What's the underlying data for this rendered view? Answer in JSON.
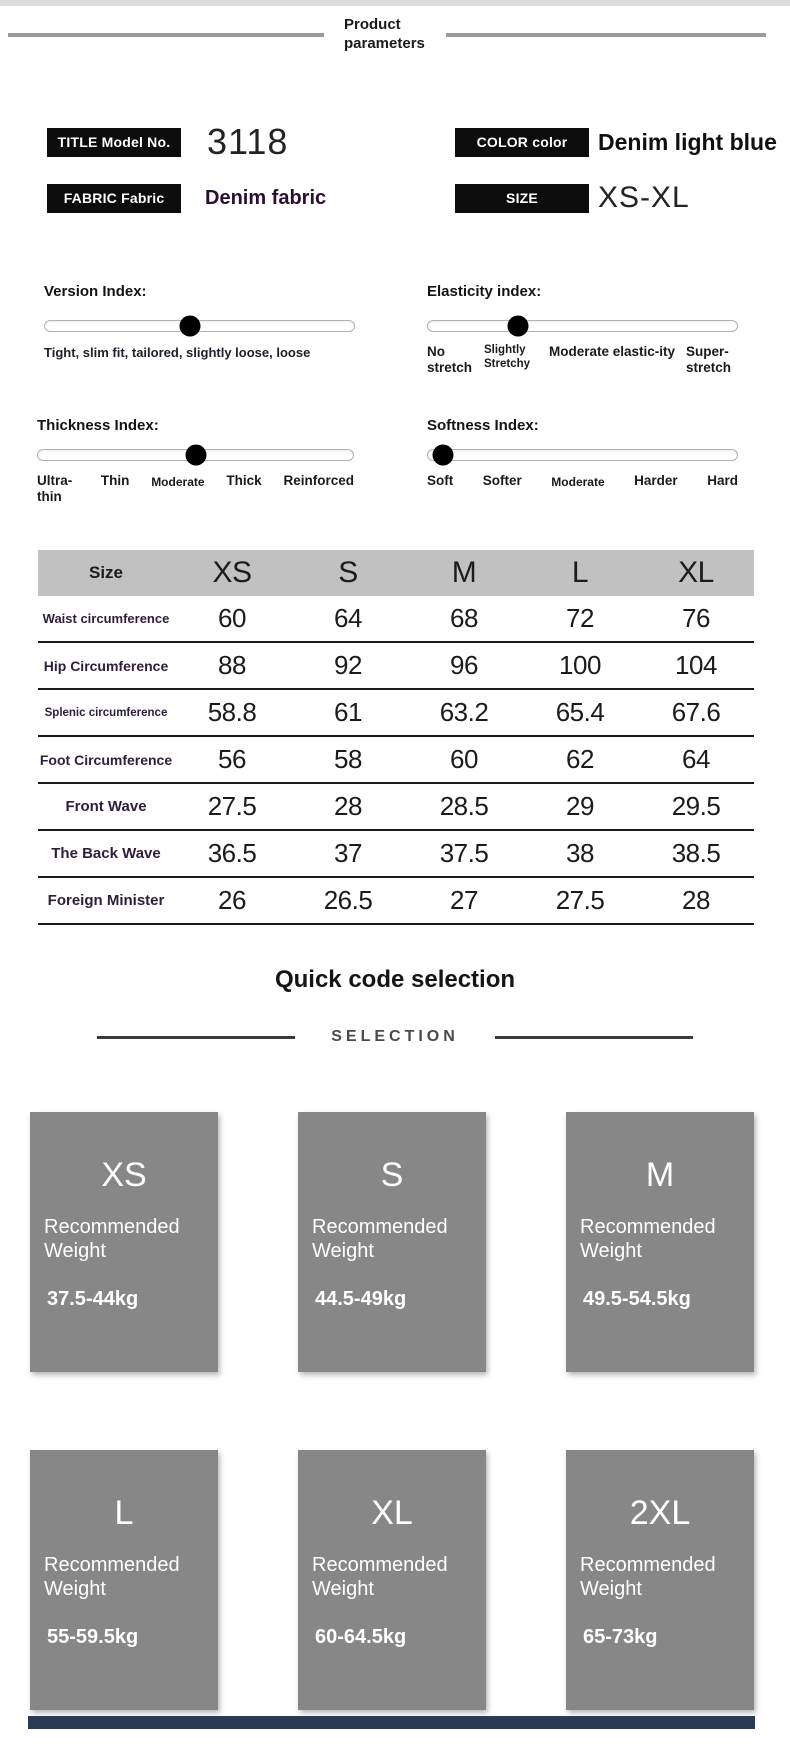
{
  "header": {
    "title": "Product parameters"
  },
  "badges": {
    "model": {
      "label": "TITLE Model No.",
      "value": "3118"
    },
    "color": {
      "label": "COLOR color",
      "value": "Denim light blue"
    },
    "fabric": {
      "label": "FABRIC Fabric",
      "value": "Denim fabric"
    },
    "size": {
      "label": "SIZE",
      "value": "XS-XL"
    }
  },
  "sliders": {
    "version": {
      "label": "Version Index:",
      "percent": 47,
      "caption": "Tight, slim fit, tailored, slightly loose, loose"
    },
    "elasticity": {
      "label": "Elasticity index:",
      "percent": 29,
      "ticks": [
        "No stretch",
        "Slightly Stretchy",
        "Moderate elastic-ity",
        "Super-stretch"
      ]
    },
    "thickness": {
      "label": "Thickness Index:",
      "percent": 50,
      "ticks": [
        "Ultra-thin",
        "Thin",
        "Moderate",
        "Thick",
        "Reinforced"
      ]
    },
    "softness": {
      "label": "Softness Index:",
      "percent": 5,
      "ticks": [
        "Soft",
        "Softer",
        "Moderate",
        "Harder",
        "Hard"
      ]
    }
  },
  "size_table": {
    "header_label": "Size",
    "columns": [
      "XS",
      "S",
      "M",
      "L",
      "XL"
    ],
    "rows": [
      {
        "label": "Waist circumference",
        "values": [
          "60",
          "64",
          "68",
          "72",
          "76"
        ]
      },
      {
        "label": "Hip Circumference",
        "values": [
          "88",
          "92",
          "96",
          "100",
          "104"
        ]
      },
      {
        "label": "Splenic circumference",
        "values": [
          "58.8",
          "61",
          "63.2",
          "65.4",
          "67.6"
        ]
      },
      {
        "label": "Foot Circumference",
        "values": [
          "56",
          "58",
          "60",
          "62",
          "64"
        ]
      },
      {
        "label": "Front Wave",
        "values": [
          "27.5",
          "28",
          "28.5",
          "29",
          "29.5"
        ]
      },
      {
        "label": "The Back Wave",
        "values": [
          "36.5",
          "37",
          "37.5",
          "38",
          "38.5"
        ]
      },
      {
        "label": "Foreign Minister",
        "values": [
          "26",
          "26.5",
          "27",
          "27.5",
          "28"
        ]
      }
    ]
  },
  "quick_code": {
    "title": "Quick code selection",
    "subtitle": "SELECTION",
    "cards": [
      {
        "size": "XS",
        "label": "Recommended Weight",
        "range": "37.5-44kg"
      },
      {
        "size": "S",
        "label": "Recommended Weight",
        "range": "44.5-49kg"
      },
      {
        "size": "M",
        "label": "Recommended Weight",
        "range": "49.5-54.5kg"
      },
      {
        "size": "L",
        "label": "Recommended Weight",
        "range": "55-59.5kg"
      },
      {
        "size": "XL",
        "label": "Recommended Weight",
        "range": "60-64.5kg"
      },
      {
        "size": "2XL",
        "label": "Recommended Weight",
        "range": "65-73kg"
      }
    ]
  },
  "colors": {
    "badge_bg": "#0c0c0c",
    "table_header_bg": "#c1c1c1",
    "card_bg": "#878787",
    "bottom_bar": "#2b3a55"
  }
}
